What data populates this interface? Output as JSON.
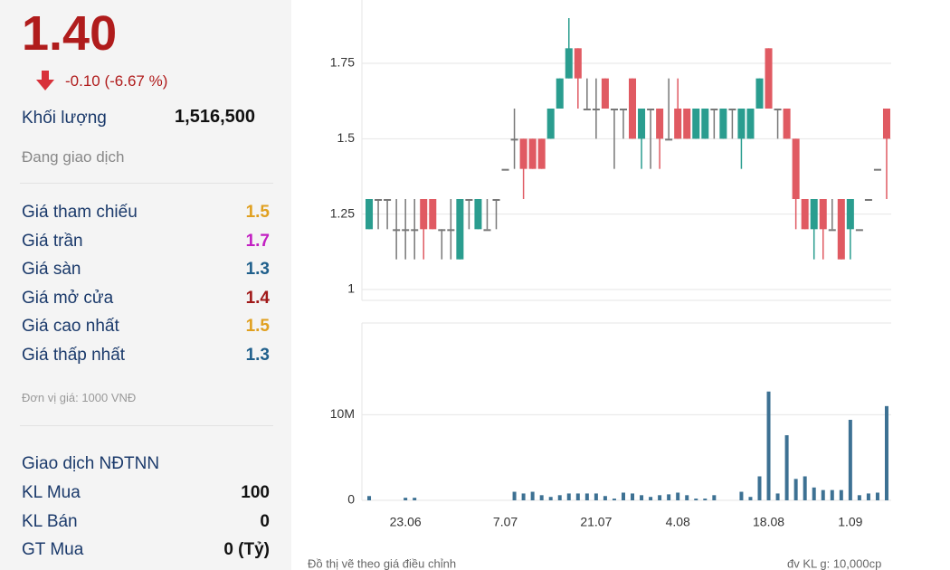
{
  "panel": {
    "price": "1.40",
    "change": "-0.10 (-6.67 %)",
    "volume_label": "Khối lượng",
    "volume_value": "1,516,500",
    "status": "Đang giao dịch",
    "price_rows": [
      {
        "label": "Giá tham chiếu",
        "value": "1.5",
        "color": "#e0a020"
      },
      {
        "label": "Giá trần",
        "value": "1.7",
        "color": "#c21fc2"
      },
      {
        "label": "Giá sàn",
        "value": "1.3",
        "color": "#1f5f8b"
      },
      {
        "label": "Giá mở cửa",
        "value": "1.4",
        "color": "#a01818"
      },
      {
        "label": "Giá cao nhất",
        "value": "1.5",
        "color": "#e0a020"
      },
      {
        "label": "Giá thấp nhất",
        "value": "1.3",
        "color": "#1f5f8b"
      }
    ],
    "unit_note": "Đơn vị giá: 1000 VNĐ",
    "foreign_title": "Giao dịch NĐTNN",
    "foreign_rows": [
      {
        "label": "KL Mua",
        "value": "100"
      },
      {
        "label": "KL Bán",
        "value": "0"
      },
      {
        "label": "GT Mua",
        "value": "0 (Tỷ)"
      }
    ]
  },
  "footer": {
    "left": "Đồ thị vẽ theo giá điều chỉnh",
    "right": "đv KL g: 10,000cp"
  },
  "chart_data": [
    {
      "type": "candlestick",
      "up_color": "#2a9d8f",
      "down_color": "#e05a62",
      "flat_color": "#777777",
      "ylim": [
        0.97,
        1.96
      ],
      "yticks": [
        1,
        1.25,
        1.5,
        1.75
      ],
      "grid": true,
      "open": [
        1.2,
        1.3,
        1.3,
        1.2,
        1.2,
        1.2,
        1.3,
        1.3,
        1.2,
        1.2,
        1.1,
        1.3,
        1.2,
        1.2,
        1.3,
        1.4,
        1.5,
        1.5,
        1.5,
        1.5,
        1.5,
        1.6,
        1.7,
        1.8,
        1.6,
        1.6,
        1.7,
        1.6,
        1.6,
        1.7,
        1.5,
        1.6,
        1.6,
        1.5,
        1.6,
        1.6,
        1.5,
        1.5,
        1.6,
        1.5,
        1.6,
        1.5,
        1.5,
        1.6,
        1.8,
        1.6,
        1.6,
        1.5,
        1.3,
        1.2,
        1.3,
        1.2,
        1.3,
        1.2,
        1.2,
        1.3,
        1.4,
        1.6
      ],
      "high": [
        1.3,
        1.3,
        1.3,
        1.3,
        1.3,
        1.3,
        1.3,
        1.3,
        1.2,
        1.3,
        1.3,
        1.3,
        1.3,
        1.3,
        1.3,
        1.4,
        1.6,
        1.5,
        1.5,
        1.5,
        1.6,
        1.7,
        1.9,
        1.8,
        1.7,
        1.7,
        1.7,
        1.6,
        1.6,
        1.7,
        1.6,
        1.6,
        1.6,
        1.7,
        1.7,
        1.6,
        1.6,
        1.6,
        1.6,
        1.6,
        1.6,
        1.6,
        1.6,
        1.7,
        1.8,
        1.6,
        1.6,
        1.5,
        1.3,
        1.3,
        1.3,
        1.3,
        1.3,
        1.3,
        1.2,
        1.3,
        1.4,
        1.6
      ],
      "low": [
        1.2,
        1.2,
        1.2,
        1.1,
        1.1,
        1.1,
        1.1,
        1.2,
        1.1,
        1.1,
        1.1,
        1.2,
        1.2,
        1.2,
        1.2,
        1.4,
        1.4,
        1.3,
        1.4,
        1.4,
        1.5,
        1.6,
        1.7,
        1.6,
        1.6,
        1.5,
        1.6,
        1.4,
        1.5,
        1.5,
        1.4,
        1.4,
        1.4,
        1.5,
        1.5,
        1.5,
        1.5,
        1.5,
        1.5,
        1.5,
        1.5,
        1.4,
        1.5,
        1.6,
        1.6,
        1.5,
        1.5,
        1.2,
        1.2,
        1.1,
        1.1,
        1.2,
        1.1,
        1.1,
        1.2,
        1.3,
        1.4,
        1.3
      ],
      "close": [
        1.3,
        1.3,
        1.3,
        1.2,
        1.2,
        1.2,
        1.2,
        1.2,
        1.2,
        1.2,
        1.3,
        1.3,
        1.3,
        1.2,
        1.3,
        1.4,
        1.5,
        1.4,
        1.4,
        1.4,
        1.6,
        1.7,
        1.8,
        1.7,
        1.6,
        1.6,
        1.6,
        1.6,
        1.6,
        1.5,
        1.6,
        1.6,
        1.5,
        1.5,
        1.5,
        1.5,
        1.6,
        1.6,
        1.6,
        1.6,
        1.6,
        1.6,
        1.6,
        1.7,
        1.6,
        1.6,
        1.5,
        1.3,
        1.2,
        1.3,
        1.2,
        1.2,
        1.1,
        1.3,
        1.2,
        1.3,
        1.4,
        1.5
      ]
    },
    {
      "type": "bar",
      "color": "#3d7193",
      "categories": [
        null,
        null,
        null,
        null,
        "23.06",
        null,
        null,
        null,
        null,
        null,
        null,
        null,
        null,
        null,
        null,
        "7.07",
        null,
        null,
        null,
        null,
        null,
        null,
        null,
        null,
        null,
        "21.07",
        null,
        null,
        null,
        null,
        null,
        null,
        null,
        null,
        "4.08",
        null,
        null,
        null,
        null,
        null,
        null,
        null,
        null,
        null,
        "18.08",
        null,
        null,
        null,
        null,
        null,
        null,
        null,
        null,
        "1.09",
        null,
        null,
        null,
        null
      ],
      "values": [
        500000,
        0,
        0,
        0,
        300000,
        300000,
        0,
        0,
        0,
        0,
        0,
        0,
        0,
        0,
        0,
        0,
        1000000,
        800000,
        1000000,
        600000,
        400000,
        600000,
        800000,
        800000,
        800000,
        800000,
        500000,
        200000,
        900000,
        800000,
        600000,
        400000,
        600000,
        700000,
        900000,
        600000,
        200000,
        200000,
        600000,
        0,
        0,
        1000000,
        400000,
        2800000,
        12700000,
        800000,
        7600000,
        2500000,
        2800000,
        1500000,
        1200000,
        1200000,
        1200000,
        9400000,
        600000,
        800000,
        900000,
        11000000
      ],
      "ylim": [
        0,
        20700000
      ],
      "yticks": [
        0,
        {
          "value": 10000000,
          "label": "10M"
        }
      ],
      "grid": true
    }
  ]
}
